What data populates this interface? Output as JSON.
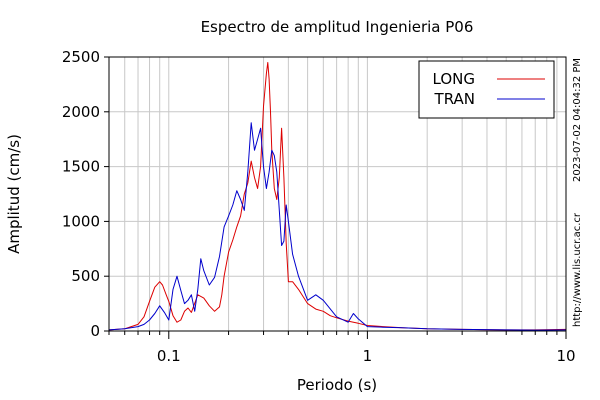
{
  "chart_data": {
    "type": "line",
    "title": "Espectro de amplitud Ingenieria P06",
    "xlabel": "Periodo (s)",
    "ylabel": "Amplitud (cm/s)",
    "x_scale": "log",
    "xlim": [
      0.05,
      10
    ],
    "ylim": [
      0,
      2500
    ],
    "x_ticks": [
      {
        "value": 0.1,
        "label": "0.1"
      },
      {
        "value": 1,
        "label": "1"
      },
      {
        "value": 10,
        "label": "10"
      }
    ],
    "y_ticks": [
      {
        "value": 0,
        "label": "0"
      },
      {
        "value": 500,
        "label": "500"
      },
      {
        "value": 1000,
        "label": "1000"
      },
      {
        "value": 1500,
        "label": "1500"
      },
      {
        "value": 2000,
        "label": "2000"
      },
      {
        "value": 2500,
        "label": "2500"
      }
    ],
    "grid": true,
    "legend_position": "top-right",
    "series": [
      {
        "name": "LONG",
        "color": "#dd0000",
        "x": [
          0.05,
          0.06,
          0.07,
          0.075,
          0.08,
          0.085,
          0.09,
          0.093,
          0.097,
          0.1,
          0.105,
          0.11,
          0.115,
          0.12,
          0.125,
          0.13,
          0.14,
          0.15,
          0.16,
          0.17,
          0.18,
          0.185,
          0.19,
          0.2,
          0.21,
          0.22,
          0.23,
          0.24,
          0.25,
          0.26,
          0.27,
          0.28,
          0.29,
          0.3,
          0.31,
          0.315,
          0.32,
          0.325,
          0.33,
          0.34,
          0.35,
          0.36,
          0.37,
          0.38,
          0.39,
          0.4,
          0.42,
          0.45,
          0.48,
          0.5,
          0.55,
          0.6,
          0.65,
          0.7,
          0.8,
          0.9,
          1.0,
          1.2,
          1.5,
          2,
          3,
          5,
          7,
          10
        ],
        "y": [
          10,
          20,
          60,
          130,
          270,
          400,
          450,
          420,
          330,
          270,
          140,
          80,
          100,
          180,
          210,
          170,
          330,
          300,
          230,
          180,
          220,
          330,
          500,
          720,
          830,
          950,
          1050,
          1250,
          1350,
          1550,
          1400,
          1300,
          1500,
          2050,
          2350,
          2450,
          2300,
          2000,
          1650,
          1300,
          1200,
          1400,
          1850,
          1400,
          800,
          450,
          450,
          380,
          300,
          250,
          200,
          180,
          140,
          120,
          90,
          70,
          50,
          40,
          30,
          20,
          15,
          10,
          10,
          15
        ]
      },
      {
        "name": "TRAN",
        "color": "#0000cc",
        "x": [
          0.05,
          0.06,
          0.07,
          0.075,
          0.08,
          0.085,
          0.09,
          0.095,
          0.1,
          0.105,
          0.11,
          0.115,
          0.12,
          0.125,
          0.13,
          0.135,
          0.14,
          0.145,
          0.15,
          0.16,
          0.17,
          0.18,
          0.19,
          0.2,
          0.21,
          0.22,
          0.23,
          0.24,
          0.25,
          0.26,
          0.27,
          0.28,
          0.29,
          0.3,
          0.31,
          0.32,
          0.33,
          0.34,
          0.35,
          0.36,
          0.37,
          0.38,
          0.39,
          0.4,
          0.42,
          0.45,
          0.5,
          0.55,
          0.6,
          0.7,
          0.8,
          0.85,
          0.9,
          1.0,
          1.2,
          1.5,
          2,
          3,
          5,
          7,
          10
        ],
        "y": [
          10,
          20,
          40,
          60,
          100,
          160,
          230,
          170,
          100,
          380,
          500,
          370,
          250,
          280,
          330,
          180,
          380,
          660,
          550,
          420,
          490,
          680,
          950,
          1050,
          1150,
          1280,
          1200,
          1100,
          1450,
          1900,
          1650,
          1750,
          1850,
          1500,
          1300,
          1450,
          1650,
          1600,
          1450,
          1100,
          780,
          820,
          1150,
          1000,
          700,
          500,
          280,
          330,
          280,
          130,
          80,
          160,
          110,
          40,
          35,
          30,
          20,
          15,
          10,
          8,
          10
        ]
      }
    ]
  },
  "annotations": {
    "timestamp": "2023-07-02 04:04:32 PM",
    "website": "http://www.lis.ucr.ac.cr"
  }
}
